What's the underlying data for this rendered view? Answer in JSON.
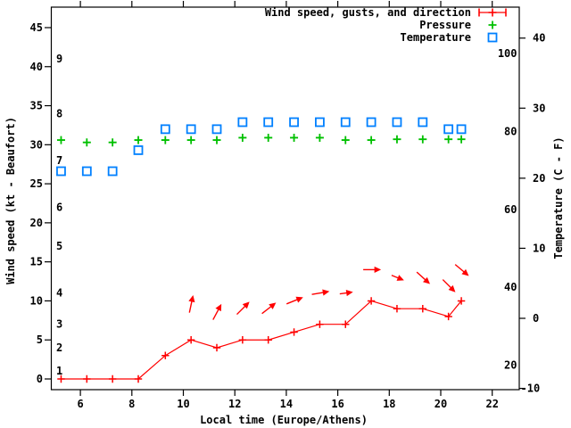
{
  "chart_data": {
    "type": "line",
    "title": "",
    "xlabel": "Local time (Europe/Athens)",
    "ylabel_left": "Wind speed (kt - Beaufort)",
    "ylabel_right": "Temperature (C - F)",
    "grid": false,
    "legend_position": "top-right-inside",
    "legend": [
      {
        "label": "Wind speed, gusts, and direction",
        "sample": "errorbar-plus",
        "color": "#ff0000"
      },
      {
        "label": "Pressure",
        "sample": "plus",
        "color": "#00c000"
      },
      {
        "label": "Temperature",
        "sample": "square",
        "color": "#0080ff"
      }
    ],
    "x_range": [
      4.87,
      23.05
    ],
    "x_ticks": [
      6,
      8,
      10,
      12,
      14,
      16,
      18,
      20,
      22
    ],
    "left_axis": {
      "label_unit": "kt",
      "ticks": [
        0,
        5,
        10,
        15,
        20,
        25,
        30,
        35,
        40,
        45
      ],
      "range": [
        -1.37,
        47.6
      ]
    },
    "beaufort_marks": [
      {
        "bft": "1",
        "kt": 1
      },
      {
        "bft": "2",
        "kt": 4
      },
      {
        "bft": "3",
        "kt": 7
      },
      {
        "bft": "4",
        "kt": 11
      },
      {
        "bft": "5",
        "kt": 17
      },
      {
        "bft": "6",
        "kt": 22
      },
      {
        "bft": "7",
        "kt": 28
      },
      {
        "bft": "8",
        "kt": 34
      },
      {
        "bft": "9",
        "kt": 41
      }
    ],
    "right_axis_celsius": {
      "ticks": [
        -10,
        0,
        10,
        20,
        30,
        40
      ]
    },
    "right_axis_fahrenheit_labels": [
      20,
      40,
      60,
      80,
      100
    ],
    "x": [
      5.25,
      6.25,
      7.25,
      8.25,
      9.3,
      10.3,
      11.3,
      12.3,
      13.3,
      14.3,
      15.3,
      16.3,
      17.3,
      18.3,
      19.3,
      20.3,
      20.8
    ],
    "series": [
      {
        "name": "wind_speed_kt",
        "axis": "left",
        "color": "#ff0000",
        "values": [
          0,
          0,
          0,
          0,
          3,
          5,
          4,
          5,
          5,
          6,
          7,
          7,
          10,
          9,
          9,
          8,
          10
        ]
      },
      {
        "name": "pressure",
        "axis": "left",
        "color": "#00c000",
        "values": [
          30.6,
          30.3,
          30.3,
          30.6,
          30.6,
          30.6,
          30.6,
          30.9,
          30.9,
          30.9,
          30.9,
          30.6,
          30.6,
          30.7,
          30.7,
          30.7,
          30.7
        ]
      },
      {
        "name": "temperature_c",
        "axis": "right_celsius",
        "color": "#0080ff",
        "values": [
          21,
          21,
          21,
          24,
          27,
          27,
          27,
          28,
          28,
          28,
          28,
          28,
          28,
          28,
          28,
          27,
          27
        ]
      }
    ],
    "wind_arrows": [
      {
        "t": 10.3,
        "gust_kt": 9.5,
        "angle_deg": 78,
        "len": 18
      },
      {
        "t": 11.3,
        "gust_kt": 8.5,
        "angle_deg": 62,
        "len": 18
      },
      {
        "t": 12.3,
        "gust_kt": 9.0,
        "angle_deg": 45,
        "len": 18
      },
      {
        "t": 13.3,
        "gust_kt": 9.0,
        "angle_deg": 38,
        "len": 18
      },
      {
        "t": 14.3,
        "gust_kt": 10.0,
        "angle_deg": 22,
        "len": 18
      },
      {
        "t": 15.3,
        "gust_kt": 11.0,
        "angle_deg": 10,
        "len": 18
      },
      {
        "t": 16.3,
        "gust_kt": 11.0,
        "angle_deg": 8,
        "len": 13
      },
      {
        "t": 17.3,
        "gust_kt": 14.0,
        "angle_deg": 0,
        "len": 18
      },
      {
        "t": 18.3,
        "gust_kt": 13.0,
        "angle_deg": -22,
        "len": 13
      },
      {
        "t": 19.3,
        "gust_kt": 13.0,
        "angle_deg": -42,
        "len": 18
      },
      {
        "t": 20.3,
        "gust_kt": 12.0,
        "angle_deg": -45,
        "len": 18
      },
      {
        "t": 20.8,
        "gust_kt": 14.0,
        "angle_deg": -40,
        "len": 18
      }
    ]
  },
  "colors": {
    "background": "#ffffff",
    "axis": "#000000",
    "wind": "#ff0000",
    "pressure": "#00c000",
    "temperature": "#0080ff"
  }
}
